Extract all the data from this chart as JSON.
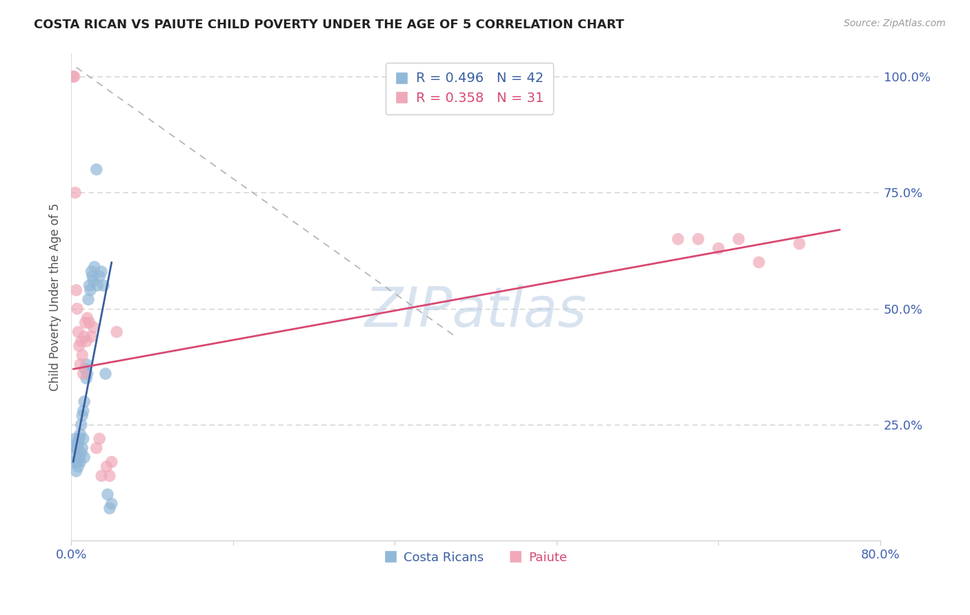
{
  "title": "COSTA RICAN VS PAIUTE CHILD POVERTY UNDER THE AGE OF 5 CORRELATION CHART",
  "source": "Source: ZipAtlas.com",
  "ylabel": "Child Poverty Under the Age of 5",
  "xlim": [
    0.0,
    0.8
  ],
  "ylim": [
    0.0,
    1.05
  ],
  "xticks": [
    0.0,
    0.16,
    0.32,
    0.48,
    0.64,
    0.8
  ],
  "xticklabels": [
    "0.0%",
    "",
    "",
    "",
    "",
    "80.0%"
  ],
  "yticks_right": [
    0.25,
    0.5,
    0.75,
    1.0
  ],
  "ytick_labels_right": [
    "25.0%",
    "50.0%",
    "75.0%",
    "100.0%"
  ],
  "watermark_text": "ZIPatlas",
  "legend_blue_label": "R = 0.496   N = 42",
  "legend_pink_label": "R = 0.358   N = 31",
  "legend_bottom_blue": "Costa Ricans",
  "legend_bottom_pink": "Paiute",
  "blue_color": "#92b8d8",
  "pink_color": "#f0a8b8",
  "blue_line_color": "#3a5fa0",
  "pink_line_color": "#d84870",
  "grid_color": "#cccccc",
  "title_color": "#222222",
  "axis_label_color": "#555555",
  "right_tick_color": "#4060b0",
  "bottom_tick_color": "#4060b0",
  "blue_scatter_x": [
    0.002,
    0.003,
    0.004,
    0.004,
    0.005,
    0.005,
    0.006,
    0.006,
    0.007,
    0.007,
    0.008,
    0.008,
    0.009,
    0.009,
    0.01,
    0.01,
    0.011,
    0.011,
    0.012,
    0.012,
    0.013,
    0.013,
    0.014,
    0.015,
    0.015,
    0.016,
    0.017,
    0.018,
    0.019,
    0.02,
    0.021,
    0.022,
    0.023,
    0.025,
    0.026,
    0.028,
    0.03,
    0.032,
    0.034,
    0.036,
    0.038,
    0.04
  ],
  "blue_scatter_y": [
    0.17,
    0.19,
    0.2,
    0.22,
    0.15,
    0.21,
    0.17,
    0.2,
    0.16,
    0.21,
    0.18,
    0.22,
    0.17,
    0.23,
    0.19,
    0.25,
    0.2,
    0.27,
    0.22,
    0.28,
    0.18,
    0.3,
    0.37,
    0.35,
    0.38,
    0.36,
    0.52,
    0.55,
    0.54,
    0.58,
    0.57,
    0.56,
    0.59,
    0.8,
    0.55,
    0.57,
    0.58,
    0.55,
    0.36,
    0.1,
    0.07,
    0.08
  ],
  "pink_scatter_x": [
    0.002,
    0.003,
    0.004,
    0.005,
    0.006,
    0.007,
    0.008,
    0.009,
    0.01,
    0.011,
    0.012,
    0.013,
    0.014,
    0.015,
    0.016,
    0.018,
    0.02,
    0.022,
    0.025,
    0.028,
    0.03,
    0.035,
    0.038,
    0.04,
    0.045,
    0.6,
    0.62,
    0.64,
    0.66,
    0.68,
    0.72
  ],
  "pink_scatter_y": [
    1.0,
    1.0,
    0.75,
    0.54,
    0.5,
    0.45,
    0.42,
    0.38,
    0.43,
    0.4,
    0.36,
    0.44,
    0.47,
    0.43,
    0.48,
    0.47,
    0.44,
    0.46,
    0.2,
    0.22,
    0.14,
    0.16,
    0.14,
    0.17,
    0.45,
    0.65,
    0.65,
    0.63,
    0.65,
    0.6,
    0.64
  ],
  "blue_line_x": [
    0.002,
    0.04
  ],
  "blue_line_y": [
    0.17,
    0.6
  ],
  "pink_line_x": [
    0.002,
    0.76
  ],
  "pink_line_y": [
    0.37,
    0.67
  ],
  "ref_line_x": [
    0.005,
    0.38
  ],
  "ref_line_y": [
    1.02,
    0.44
  ]
}
